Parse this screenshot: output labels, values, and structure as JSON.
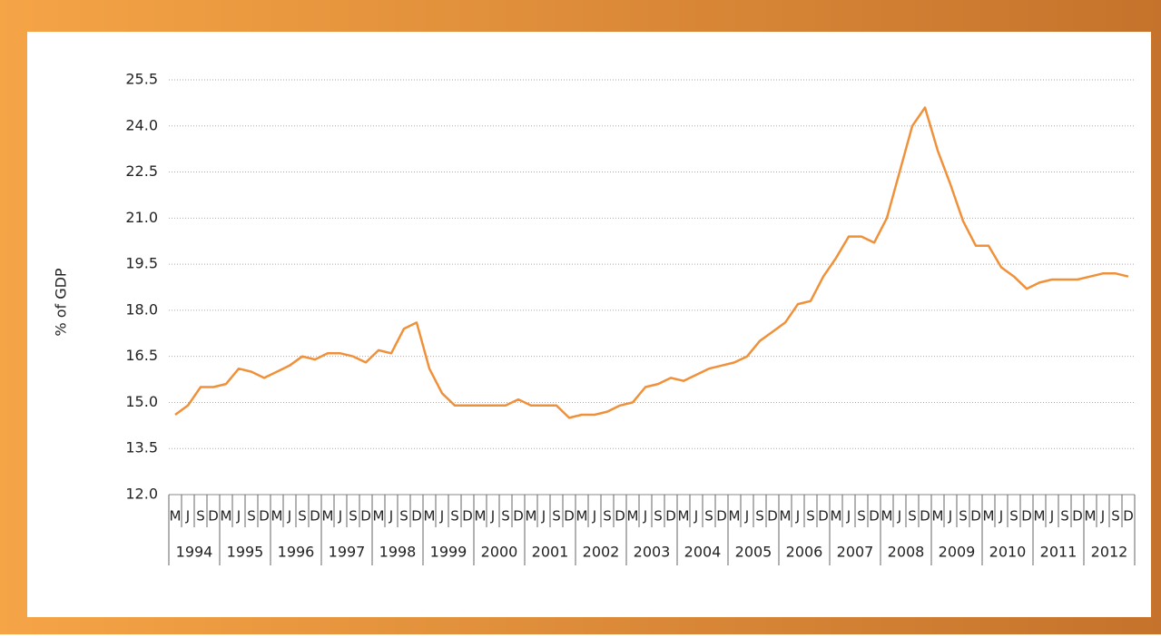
{
  "chart_data": {
    "type": "line",
    "y_label": "% of GDP",
    "categories": [
      "M",
      "J",
      "S",
      "D",
      "M",
      "J",
      "S",
      "D",
      "M",
      "J",
      "S",
      "D",
      "M",
      "J",
      "S",
      "D",
      "M",
      "J",
      "S",
      "D",
      "M",
      "J",
      "S",
      "D",
      "M",
      "J",
      "S",
      "D",
      "M",
      "J",
      "S",
      "D",
      "M",
      "J",
      "S",
      "D",
      "M",
      "J",
      "S",
      "D",
      "M",
      "J",
      "S",
      "D",
      "M",
      "J",
      "S",
      "D",
      "M",
      "J",
      "S",
      "D",
      "M",
      "J",
      "S",
      "D",
      "M",
      "J",
      "S",
      "D",
      "M",
      "J",
      "S",
      "D",
      "M",
      "J",
      "S",
      "D",
      "M",
      "J",
      "S",
      "D",
      "M",
      "J",
      "S",
      "D"
    ],
    "year_groups": [
      "1994",
      "1995",
      "1996",
      "1997",
      "1998",
      "1999",
      "2000",
      "2001",
      "2002",
      "2003",
      "2004",
      "2005",
      "2006",
      "2007",
      "2008",
      "2009",
      "2010",
      "2011",
      "2012"
    ],
    "series": [
      {
        "name": "% of GDP",
        "color": "#f0913a",
        "values": [
          14.6,
          14.9,
          15.5,
          15.5,
          15.6,
          16.1,
          16.0,
          15.8,
          16.0,
          16.2,
          16.5,
          16.4,
          16.6,
          16.6,
          16.5,
          16.3,
          16.7,
          16.6,
          17.4,
          17.6,
          16.1,
          15.3,
          14.9,
          14.9,
          14.9,
          14.9,
          14.9,
          15.1,
          14.9,
          14.9,
          14.9,
          14.5,
          14.6,
          14.6,
          14.7,
          14.9,
          15.0,
          15.5,
          15.6,
          15.8,
          15.7,
          15.9,
          16.1,
          16.2,
          16.3,
          16.5,
          17.0,
          17.3,
          17.6,
          18.2,
          18.3,
          19.1,
          19.7,
          20.4,
          20.4,
          20.2,
          21.0,
          22.5,
          24.0,
          24.6,
          23.2,
          22.1,
          20.9,
          20.1,
          20.1,
          19.4,
          19.1,
          18.7,
          18.9,
          19.0,
          19.0,
          19.0,
          19.1,
          19.2,
          19.2,
          19.1
        ]
      }
    ],
    "ylim": [
      12,
      25.5
    ],
    "yticks": [
      {
        "value": 12,
        "label": "12.0"
      },
      13.5,
      {
        "value": 15,
        "label": "15.0"
      },
      16.5,
      {
        "value": 18,
        "label": "18.0"
      },
      19.5,
      {
        "value": 21,
        "label": "21.0"
      },
      22.5,
      {
        "value": 24,
        "label": "24.0"
      },
      25.5
    ],
    "grid": true
  }
}
